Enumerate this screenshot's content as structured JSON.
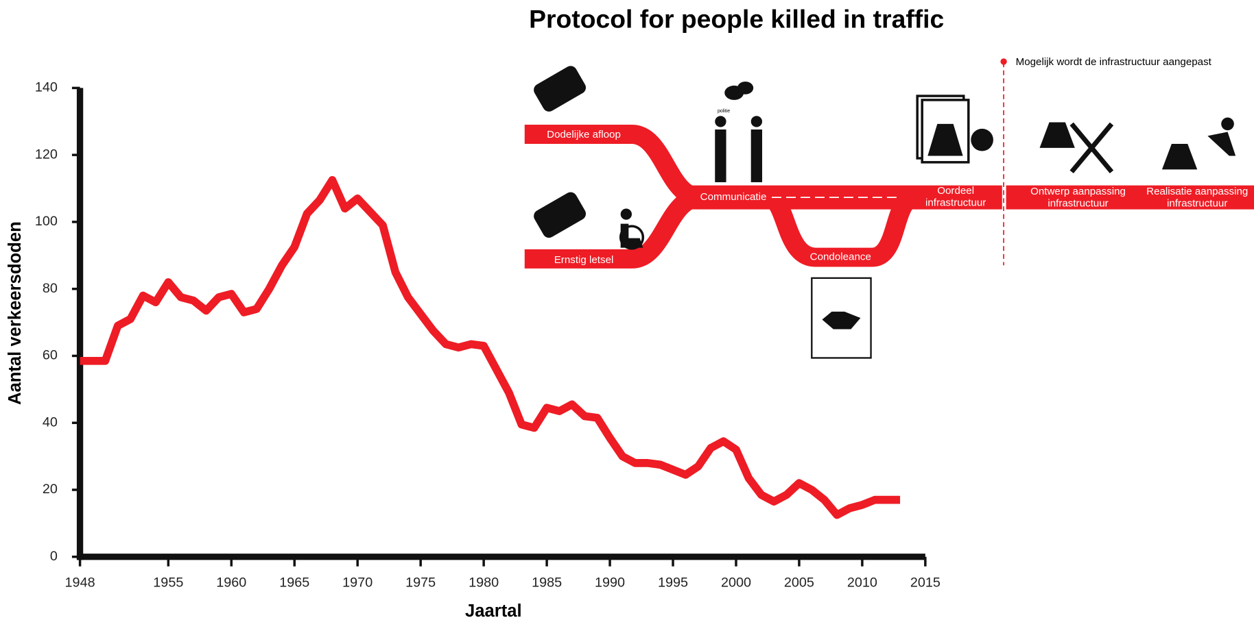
{
  "chart_data": {
    "type": "line",
    "title": "Protocol for people killed in traffic",
    "x_label": "Jaartal",
    "y_label": "Aantal verkeersdoden",
    "x": [
      1948,
      1949,
      1950,
      1951,
      1952,
      1953,
      1954,
      1955,
      1956,
      1957,
      1958,
      1959,
      1960,
      1961,
      1962,
      1963,
      1964,
      1965,
      1966,
      1967,
      1968,
      1969,
      1970,
      1971,
      1972,
      1973,
      1974,
      1975,
      1976,
      1977,
      1978,
      1979,
      1980,
      1981,
      1982,
      1983,
      1984,
      1985,
      1986,
      1987,
      1988,
      1989,
      1990,
      1991,
      1992,
      1993,
      1994,
      1995,
      1996,
      1997,
      1998,
      1999,
      2000,
      2001,
      2002,
      2003,
      2004,
      2005,
      2006,
      2007,
      2008,
      2009,
      2010,
      2011,
      2012,
      2013
    ],
    "series": [
      {
        "name": "Aantal verkeersdoden",
        "color": "#ee1c25",
        "values": [
          58.5,
          58.5,
          58.5,
          69,
          71,
          78,
          76,
          82,
          77.5,
          76.5,
          73.5,
          77.5,
          78.5,
          73,
          74,
          80,
          87,
          92.5,
          102.5,
          106.5,
          112.5,
          104,
          107,
          103,
          99,
          85,
          77.5,
          72.5,
          67.5,
          63.5,
          62.5,
          63.5,
          63,
          56,
          49,
          39.5,
          38.5,
          44.5,
          43.5,
          45.5,
          42,
          41.5,
          35.5,
          30,
          28,
          28,
          27.5,
          26,
          24.5,
          27,
          32.5,
          34.5,
          32,
          23.5,
          18.5,
          16.5,
          18.5,
          22,
          20,
          17,
          12.5,
          14.5,
          15.5,
          17,
          17,
          17
        ]
      }
    ],
    "xlim": [
      1948,
      2015
    ],
    "xticks": [
      1948,
      1955,
      1960,
      1965,
      1970,
      1975,
      1980,
      1985,
      1990,
      1995,
      2000,
      2005,
      2010,
      2015
    ],
    "ylim": [
      0,
      140
    ],
    "yticks": [
      0,
      20,
      40,
      60,
      80,
      100,
      120,
      140
    ],
    "grid": false
  },
  "diagram": {
    "steps": [
      [
        "Dodelijke afloop"
      ],
      [
        "Ernstig letsel"
      ],
      [
        "Communicatie"
      ],
      [
        "Condoleance"
      ],
      [
        "Oordeel",
        "infrastructuur"
      ],
      [
        "Ontwerp aanpassing",
        "infrastructuur"
      ],
      [
        "Realisatie aanpassing",
        "infrastructuur"
      ]
    ],
    "note": "Mogelijk wordt de infrastructuur aangepast",
    "icon_label": "politie"
  }
}
